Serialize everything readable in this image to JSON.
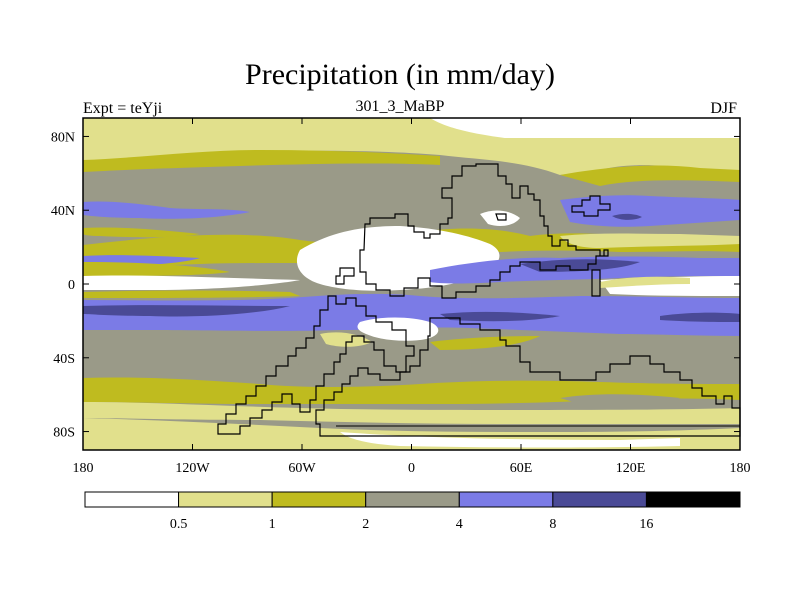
{
  "title": "Precipitation (in mm/day)",
  "experiment_label": "Expt = teYji",
  "run_label": "301_3_MaBP",
  "season_label": "DJF",
  "map": {
    "projection": "cylindrical equidistant",
    "lon_range": [
      -180,
      180
    ],
    "lat_range": [
      -90,
      90
    ],
    "lat_ticks": [
      "80N",
      "40N",
      "0",
      "40S",
      "80S"
    ],
    "lon_ticks": [
      "180",
      "120W",
      "60W",
      "0",
      "60E",
      "120E",
      "180"
    ]
  },
  "colorbar": {
    "colors": [
      "#ffffff",
      "#e1e08c",
      "#bfbb1f",
      "#9a9a88",
      "#7b7be6",
      "#4a4a96",
      "#000000"
    ],
    "labels": [
      "0.5",
      "1",
      "2",
      "4",
      "8",
      "16"
    ]
  }
}
